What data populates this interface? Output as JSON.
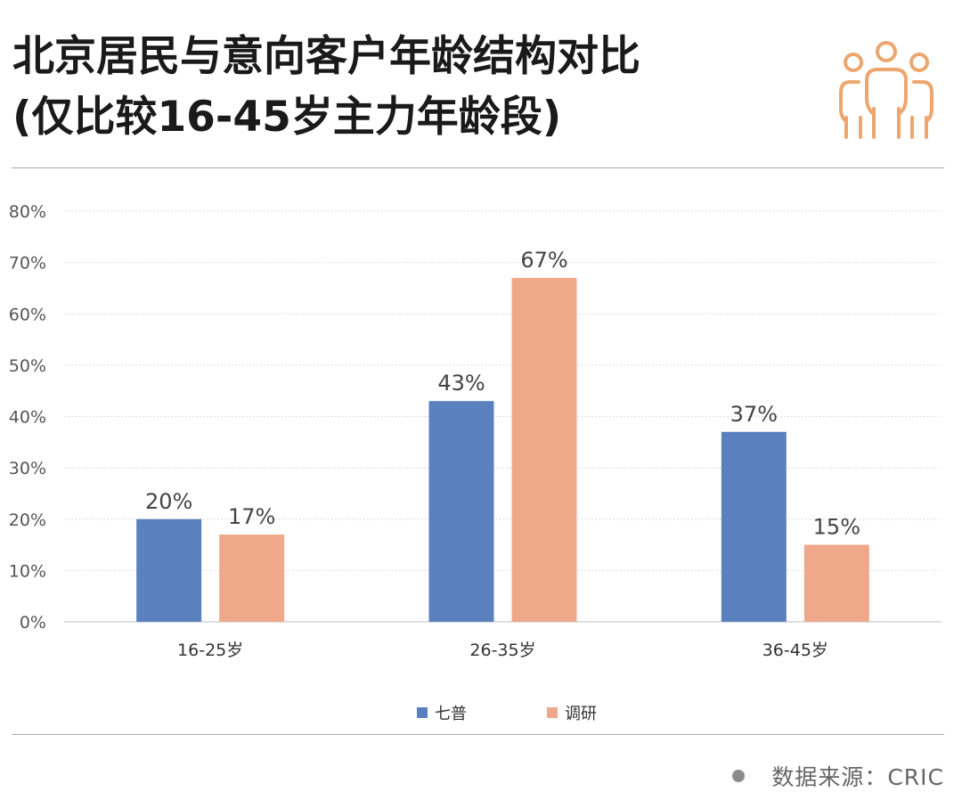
{
  "header": {
    "title_line1": "北京居民与意向客户年龄结构对比",
    "title_line2": "(仅比较16-45岁主力年龄段)",
    "icon": "people-group-icon",
    "icon_color": "#EDA66D"
  },
  "legend": {
    "items": [
      {
        "label": "七普",
        "color": "#5B80BE"
      },
      {
        "label": "调研",
        "color": "#EFA98A"
      }
    ]
  },
  "footer": {
    "source": "数据来源：CRIC"
  },
  "chart_data": {
    "type": "bar",
    "categories": [
      "16-25岁",
      "26-35岁",
      "36-45岁"
    ],
    "series": [
      {
        "name": "七普",
        "values": [
          20,
          43,
          37
        ],
        "labels": [
          "20%",
          "43%",
          "37%"
        ],
        "color": "#5B80BE"
      },
      {
        "name": "调研",
        "values": [
          17,
          67,
          15
        ],
        "labels": [
          "17%",
          "67%",
          "15%"
        ],
        "color": "#EFA98A"
      }
    ],
    "yticks": [
      "0%",
      "10%",
      "20%",
      "30%",
      "40%",
      "50%",
      "60%",
      "70%",
      "80%"
    ],
    "ylim": [
      0,
      80
    ],
    "grid": true,
    "legend_position": "bottom"
  }
}
